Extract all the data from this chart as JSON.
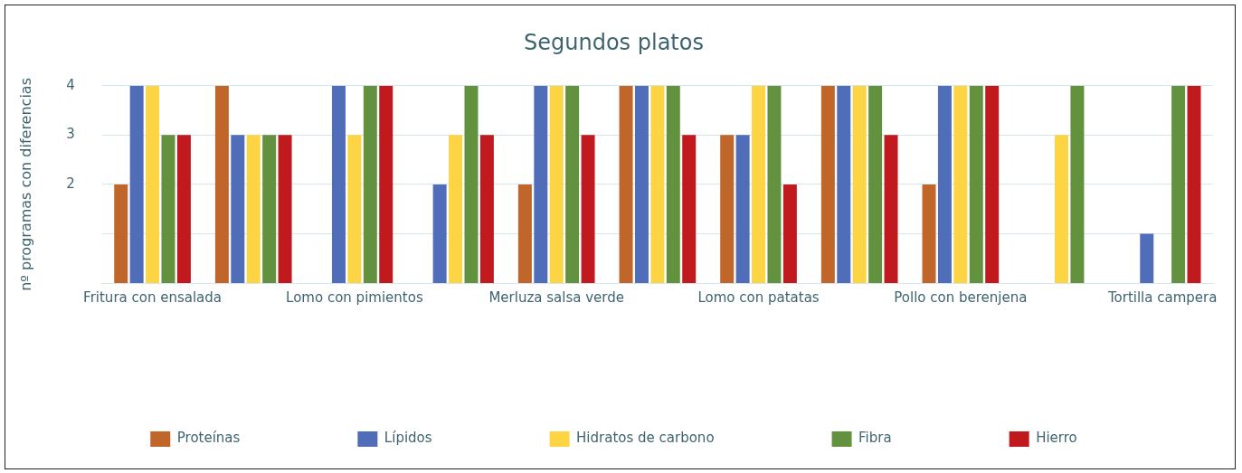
{
  "chart_data": {
    "type": "bar",
    "title": "Segundos platos",
    "ylabel": "nº programas con diferencias",
    "categories": [
      "Fritura con ensalada",
      null,
      "Lomo con pimientos",
      null,
      "Merluza salsa verde",
      null,
      "Lomo con patatas",
      null,
      "Pollo con berenjena",
      null,
      "Tortilla campera"
    ],
    "series": [
      {
        "name": "Proteínas",
        "color": "#c0662a",
        "values": [
          2,
          4,
          null,
          null,
          2,
          4,
          3,
          4,
          2,
          null,
          null
        ]
      },
      {
        "name": "Lípidos",
        "color": "#4f6db8",
        "values": [
          4,
          3,
          4,
          2,
          4,
          4,
          3,
          4,
          4,
          null,
          1
        ]
      },
      {
        "name": "Hidratos de carbono",
        "color": "#fdd444",
        "values": [
          4,
          3,
          3,
          3,
          4,
          4,
          4,
          4,
          4,
          3,
          null
        ]
      },
      {
        "name": "Fibra",
        "color": "#62923e",
        "values": [
          3,
          3,
          4,
          4,
          4,
          4,
          4,
          4,
          4,
          4,
          4
        ]
      },
      {
        "name": "Hierro",
        "color": "#c0191e",
        "values": [
          3,
          3,
          4,
          3,
          3,
          3,
          2,
          3,
          4,
          null,
          4
        ]
      }
    ],
    "ylim": [
      0,
      4
    ],
    "yticks": [
      {
        "value": 1,
        "label": null
      },
      2,
      3,
      4
    ],
    "grid": "y",
    "legend": "bottom"
  }
}
